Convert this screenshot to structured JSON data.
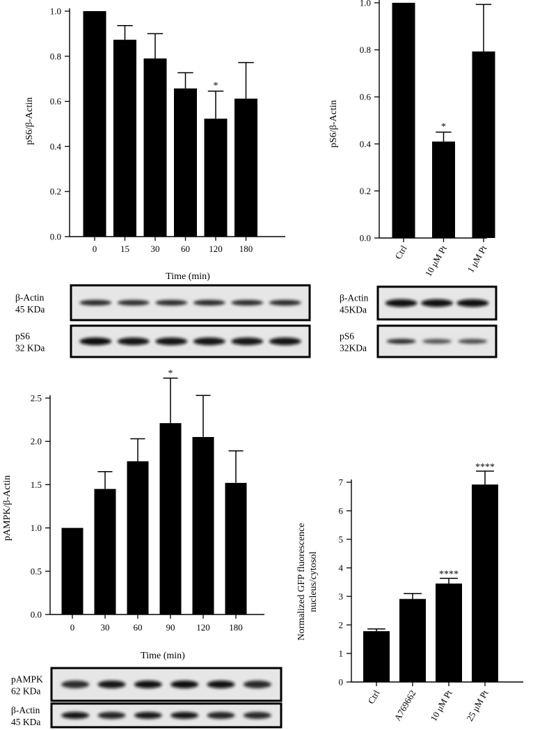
{
  "chart_data": [
    {
      "id": "A",
      "type": "bar",
      "ylabel": "pS6/β-Actin",
      "xlabel": "Time (min)",
      "categories": [
        "0",
        "15",
        "30",
        "60",
        "120",
        "180"
      ],
      "values": [
        1.0,
        0.873,
        0.79,
        0.657,
        0.523,
        0.612
      ],
      "errors": [
        0,
        0.063,
        0.11,
        0.07,
        0.122,
        0.16
      ],
      "significance": [
        "",
        "",
        "",
        "",
        "*",
        ""
      ],
      "ylim": [
        0,
        1.0
      ],
      "yticks": [
        "0.0",
        "0.2",
        "0.4",
        "0.6",
        "0.8",
        "1.0"
      ],
      "bar_color": "#000000"
    },
    {
      "id": "B",
      "type": "bar",
      "ylabel": "pS6/β-Actin",
      "xlabel": "",
      "categories": [
        "Ctrl",
        "10 μM Pt",
        "1 μM Pt"
      ],
      "values": [
        1.0,
        0.41,
        0.793
      ],
      "errors": [
        0,
        0.04,
        0.2
      ],
      "significance": [
        "",
        "*",
        ""
      ],
      "ylim": [
        0,
        1.0
      ],
      "yticks": [
        "0.0",
        "0.2",
        "0.4",
        "0.6",
        "0.8",
        "1.0"
      ],
      "bar_color": "#000000"
    },
    {
      "id": "C",
      "type": "bar",
      "ylabel": "pAMPK/β-Actin",
      "xlabel": "Time (min)",
      "categories": [
        "0",
        "30",
        "60",
        "90",
        "120",
        "180"
      ],
      "values": [
        1.0,
        1.45,
        1.77,
        2.21,
        2.05,
        1.52
      ],
      "errors": [
        0,
        0.2,
        0.26,
        0.52,
        0.48,
        0.37
      ],
      "significance": [
        "",
        "",
        "",
        "*",
        "",
        ""
      ],
      "ylim": [
        0,
        2.5
      ],
      "yticks": [
        "0.0",
        "0.5",
        "1.0",
        "1.5",
        "2.0",
        "2.5"
      ],
      "bar_color": "#000000"
    },
    {
      "id": "D",
      "type": "bar",
      "ylabel": [
        "Normalized GFP fluorescence",
        "nucleus/cytosol"
      ],
      "xlabel": "",
      "categories": [
        "Ctrl",
        "A769662",
        "10 μM Pt",
        "25 μM Pt"
      ],
      "values": [
        1.78,
        2.91,
        3.45,
        6.92
      ],
      "errors": [
        0.08,
        0.19,
        0.18,
        0.47
      ],
      "significance": [
        "",
        "",
        "****",
        "****"
      ],
      "ylim": [
        0,
        7
      ],
      "yticks": [
        "0",
        "1",
        "2",
        "3",
        "4",
        "5",
        "6",
        "7"
      ],
      "bar_color": "#000000"
    }
  ],
  "blots": {
    "A": [
      {
        "protein": "β-Actin",
        "size": "45 KDa"
      },
      {
        "protein": "pS6",
        "size": "32 KDa"
      }
    ],
    "B": [
      {
        "protein": "β-Actin",
        "size": "45KDa"
      },
      {
        "protein": "pS6",
        "size": "32KDa"
      }
    ],
    "C": [
      {
        "protein": "pAMPK",
        "size": "62 KDa"
      },
      {
        "protein": "β-Actin",
        "size": "45 KDa"
      }
    ]
  }
}
